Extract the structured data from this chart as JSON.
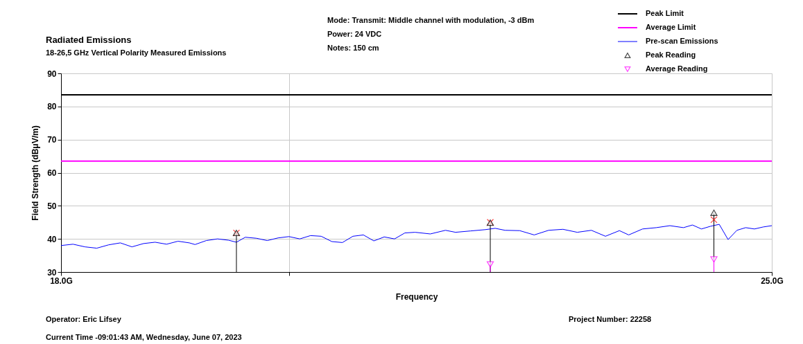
{
  "chart_data": {
    "type": "line",
    "title": "Radiated Emissions",
    "subtitle": "18-26,5 GHz Vertical Polarity Measured Emissions",
    "xlabel": "Frequency",
    "ylabel": "Field Strength (dBμV/m)",
    "annotations": [
      "Mode: Transmit: Middle channel with modulation, -3 dBm",
      "Power: 24 VDC",
      "Notes: 150 cm",
      "Operator: Eric Lifsey",
      "Current Time -09:01:43 AM, Wednesday, June 07, 2023",
      "Project Number: 22258"
    ],
    "log": "x",
    "xlim": [
      18,
      25
    ],
    "xticks": [
      {
        "value": 18,
        "label": "18.0G"
      },
      {
        "value": 20,
        "label": null
      },
      {
        "value": 25,
        "label": "25.0G"
      }
    ],
    "ylim": [
      30,
      90
    ],
    "yticks": [
      30,
      40,
      50,
      60,
      70,
      80,
      90
    ],
    "grid": true,
    "legend": "top right",
    "series": [
      {
        "name": "Peak Limit",
        "color": "#000000",
        "x": [
          18,
          25
        ],
        "values": [
          83.5,
          83.5
        ]
      },
      {
        "name": "Average Limit",
        "color": "#ff00ff",
        "x": [
          18,
          25
        ],
        "values": [
          63.5,
          63.5
        ]
      },
      {
        "name": "Pre-scan Emissions",
        "color": "#0000ff",
        "x": [
          18.0,
          18.1,
          18.2,
          18.3,
          18.4,
          18.5,
          18.6,
          18.7,
          18.8,
          18.9,
          19.0,
          19.1,
          19.15,
          19.25,
          19.35,
          19.45,
          19.52,
          19.6,
          19.7,
          19.8,
          19.9,
          20.0,
          20.1,
          20.2,
          20.3,
          20.4,
          20.5,
          20.6,
          20.7,
          20.8,
          20.9,
          21.0,
          21.1,
          21.2,
          21.35,
          21.5,
          21.6,
          21.75,
          21.9,
          22.0,
          22.1,
          22.25,
          22.4,
          22.55,
          22.7,
          22.85,
          23.0,
          23.15,
          23.3,
          23.4,
          23.55,
          23.7,
          23.85,
          24.0,
          24.1,
          24.2,
          24.3,
          24.4,
          24.5,
          24.6,
          24.7,
          24.8,
          24.9,
          25.0
        ],
        "values": [
          38.0,
          38.4,
          37.6,
          37.2,
          38.2,
          38.8,
          37.6,
          38.6,
          39.0,
          38.4,
          39.3,
          38.8,
          38.3,
          39.5,
          40.0,
          39.6,
          39.0,
          40.5,
          40.2,
          39.5,
          40.3,
          40.7,
          40.0,
          41.0,
          40.8,
          39.2,
          38.9,
          40.8,
          41.2,
          39.4,
          40.6,
          40.0,
          41.8,
          42.0,
          41.5,
          42.6,
          42.0,
          42.4,
          42.8,
          43.2,
          42.6,
          42.5,
          41.2,
          42.6,
          42.9,
          42.0,
          42.6,
          40.8,
          42.5,
          41.2,
          43.0,
          43.4,
          44.0,
          43.4,
          44.2,
          43.0,
          43.8,
          44.4,
          39.8,
          42.6,
          43.4,
          43.0,
          43.6,
          44.0
        ]
      },
      {
        "name": null,
        "type": "scatter",
        "marker": "cross",
        "color": "#ff0000",
        "x": [
          19.52,
          21.95,
          24.34
        ],
        "values": [
          41.8,
          45.0,
          45.8
        ]
      },
      {
        "name": "Peak Reading",
        "type": "lollipop",
        "marker": "triangle",
        "color": "#000000",
        "x": [
          19.52,
          21.95,
          24.34
        ],
        "values": [
          41.8,
          44.9,
          47.9
        ]
      },
      {
        "name": "Average Reading",
        "type": "lollipop",
        "marker": "triangle-down",
        "color": "#ff00ff",
        "x": [
          21.95,
          24.34
        ],
        "values": [
          32.3,
          33.8
        ]
      }
    ]
  }
}
